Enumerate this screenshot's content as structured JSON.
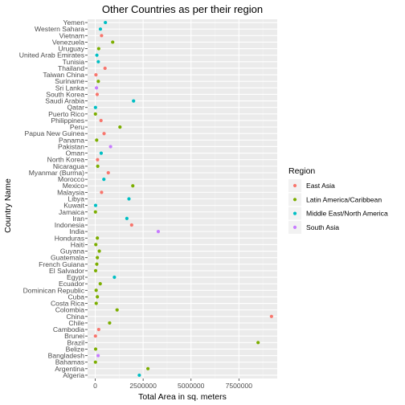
{
  "chart_data": {
    "type": "scatter",
    "title": "Other Countries as per their region",
    "xlabel": "Total Area in sq. meters",
    "ylabel": "Country Name",
    "xlim": [
      -400000,
      9500000
    ],
    "x_ticks": [
      0,
      2500000,
      5000000,
      7500000
    ],
    "x_tick_labels": [
      "0",
      "2500000",
      "5000000",
      "7500000"
    ],
    "grid": true,
    "legend": {
      "title": "Region",
      "position": "right",
      "entries": [
        {
          "name": "East Asia",
          "color": "#F8766D"
        },
        {
          "name": "Latin America/Caribbean",
          "color": "#7CAE00"
        },
        {
          "name": "Middle East/North America",
          "color": "#00BFC4"
        },
        {
          "name": "South Asia",
          "color": "#C77CFF"
        }
      ]
    },
    "categories": [
      "Algeria",
      "Argentina",
      "Bahamas",
      "Bangladesh",
      "Belize",
      "Brazil",
      "Brunei",
      "Cambodia",
      "Chile",
      "China",
      "Colombia",
      "Costa Rica",
      "Cuba",
      "Dominican Republic",
      "Ecuador",
      "Egypt",
      "El Salvador",
      "French Guiana",
      "Guatemala",
      "Guyana",
      "Haiti",
      "Honduras",
      "India",
      "Indonesia",
      "Iran",
      "Jamaica",
      "Kuwait",
      "Libya",
      "Malaysia",
      "Mexico",
      "Morocco",
      "Myanmar (Burma)",
      "Nicaragua",
      "North Korea",
      "Oman",
      "Pakistan",
      "Panama",
      "Papua New Guinea",
      "Peru",
      "Philippines",
      "Puerto Rico",
      "Qatar",
      "Saudi Arabia",
      "South Korea",
      "Sri Lanka",
      "Suriname",
      "Taiwan China",
      "Thailand",
      "Tunisia",
      "United Arab Emirates",
      "Uruguay",
      "Venezuela",
      "Vietnam",
      "Western Sahara",
      "Yemen"
    ],
    "points": [
      {
        "country": "Algeria",
        "x": 2300000,
        "region": "Middle East/North America"
      },
      {
        "country": "Argentina",
        "x": 2750000,
        "region": "Latin America/Caribbean"
      },
      {
        "country": "Bahamas",
        "x": 10000,
        "region": "Latin America/Caribbean"
      },
      {
        "country": "Bangladesh",
        "x": 150000,
        "region": "South Asia"
      },
      {
        "country": "Belize",
        "x": 20000,
        "region": "Latin America/Caribbean"
      },
      {
        "country": "Brazil",
        "x": 8500000,
        "region": "Latin America/Caribbean"
      },
      {
        "country": "Brunei",
        "x": 10000,
        "region": "East Asia"
      },
      {
        "country": "Cambodia",
        "x": 180000,
        "region": "East Asia"
      },
      {
        "country": "Chile",
        "x": 750000,
        "region": "Latin America/Caribbean"
      },
      {
        "country": "China",
        "x": 9200000,
        "region": "East Asia"
      },
      {
        "country": "Colombia",
        "x": 1140000,
        "region": "Latin America/Caribbean"
      },
      {
        "country": "Costa Rica",
        "x": 50000,
        "region": "Latin America/Caribbean"
      },
      {
        "country": "Cuba",
        "x": 110000,
        "region": "Latin America/Caribbean"
      },
      {
        "country": "Dominican Republic",
        "x": 48000,
        "region": "Latin America/Caribbean"
      },
      {
        "country": "Ecuador",
        "x": 260000,
        "region": "Latin America/Caribbean"
      },
      {
        "country": "Egypt",
        "x": 1000000,
        "region": "Middle East/North America"
      },
      {
        "country": "El Salvador",
        "x": 20000,
        "region": "Latin America/Caribbean"
      },
      {
        "country": "French Guiana",
        "x": 80000,
        "region": "Latin America/Caribbean"
      },
      {
        "country": "Guatemala",
        "x": 110000,
        "region": "Latin America/Caribbean"
      },
      {
        "country": "Guyana",
        "x": 210000,
        "region": "Latin America/Caribbean"
      },
      {
        "country": "Haiti",
        "x": 30000,
        "region": "Latin America/Caribbean"
      },
      {
        "country": "Honduras",
        "x": 110000,
        "region": "Latin America/Caribbean"
      },
      {
        "country": "India",
        "x": 3290000,
        "region": "South Asia"
      },
      {
        "country": "Indonesia",
        "x": 1900000,
        "region": "East Asia"
      },
      {
        "country": "Iran",
        "x": 1650000,
        "region": "Middle East/North America"
      },
      {
        "country": "Jamaica",
        "x": 10000,
        "region": "Latin America/Caribbean"
      },
      {
        "country": "Kuwait",
        "x": 18000,
        "region": "Middle East/North America"
      },
      {
        "country": "Libya",
        "x": 1760000,
        "region": "Middle East/North America"
      },
      {
        "country": "Malaysia",
        "x": 330000,
        "region": "East Asia"
      },
      {
        "country": "Mexico",
        "x": 1960000,
        "region": "Latin America/Caribbean"
      },
      {
        "country": "Morocco",
        "x": 450000,
        "region": "Middle East/North America"
      },
      {
        "country": "Myanmar (Burma)",
        "x": 680000,
        "region": "East Asia"
      },
      {
        "country": "Nicaragua",
        "x": 130000,
        "region": "Latin America/Caribbean"
      },
      {
        "country": "North Korea",
        "x": 120000,
        "region": "East Asia"
      },
      {
        "country": "Oman",
        "x": 310000,
        "region": "Middle East/North America"
      },
      {
        "country": "Pakistan",
        "x": 800000,
        "region": "South Asia"
      },
      {
        "country": "Panama",
        "x": 75000,
        "region": "Latin America/Caribbean"
      },
      {
        "country": "Papua New Guinea",
        "x": 460000,
        "region": "East Asia"
      },
      {
        "country": "Peru",
        "x": 1290000,
        "region": "Latin America/Caribbean"
      },
      {
        "country": "Philippines",
        "x": 300000,
        "region": "East Asia"
      },
      {
        "country": "Puerto Rico",
        "x": 9000,
        "region": "Latin America/Caribbean"
      },
      {
        "country": "Qatar",
        "x": 12000,
        "region": "Middle East/North America"
      },
      {
        "country": "Saudi Arabia",
        "x": 2000000,
        "region": "Middle East/North America"
      },
      {
        "country": "South Korea",
        "x": 100000,
        "region": "East Asia"
      },
      {
        "country": "Sri Lanka",
        "x": 65000,
        "region": "South Asia"
      },
      {
        "country": "Suriname",
        "x": 160000,
        "region": "Latin America/Caribbean"
      },
      {
        "country": "Taiwan China",
        "x": 36000,
        "region": "East Asia"
      },
      {
        "country": "Thailand",
        "x": 510000,
        "region": "East Asia"
      },
      {
        "country": "Tunisia",
        "x": 160000,
        "region": "Middle East/North America"
      },
      {
        "country": "United Arab Emirates",
        "x": 84000,
        "region": "Middle East/North America"
      },
      {
        "country": "Uruguay",
        "x": 180000,
        "region": "Latin America/Caribbean"
      },
      {
        "country": "Venezuela",
        "x": 910000,
        "region": "Latin America/Caribbean"
      },
      {
        "country": "Vietnam",
        "x": 330000,
        "region": "East Asia"
      },
      {
        "country": "Western Sahara",
        "x": 270000,
        "region": "Middle East/North America"
      },
      {
        "country": "Yemen",
        "x": 530000,
        "region": "Middle East/North America"
      }
    ]
  }
}
